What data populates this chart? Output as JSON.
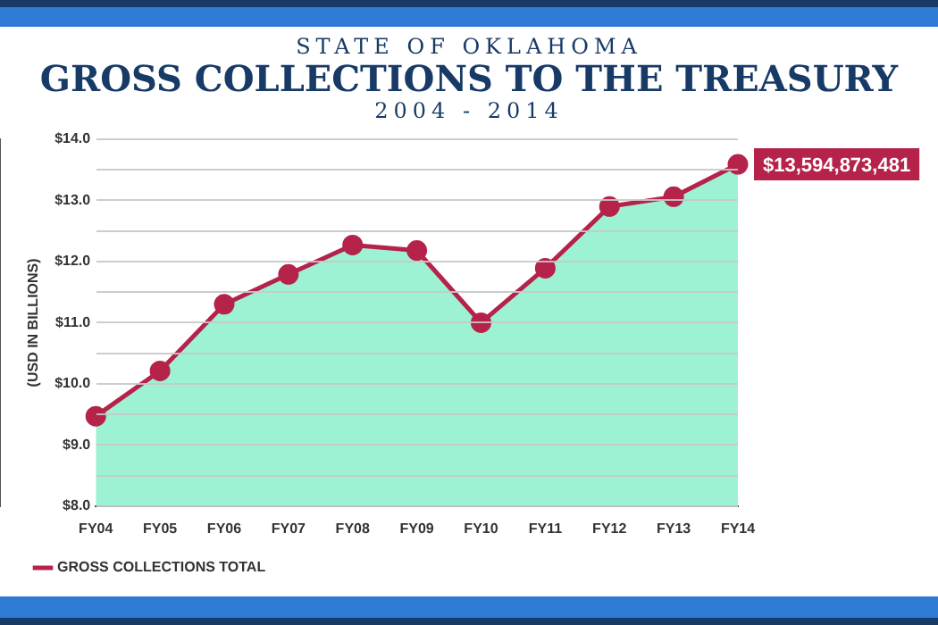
{
  "chart_data": {
    "type": "line",
    "title": "GROSS COLLECTIONS TO THE TREASURY",
    "subtitle": "2004 - 2014",
    "ylabel": "(USD IN BILLIONS)",
    "categories": [
      "FY04",
      "FY05",
      "FY06",
      "FY07",
      "FY08",
      "FY09",
      "FY10",
      "FY11",
      "FY12",
      "FY13",
      "FY14"
    ],
    "series": [
      {
        "type": "area",
        "color": "#9ef2d4",
        "values": [
          9.47,
          10.21,
          11.3,
          11.79,
          12.27,
          12.18,
          11.0,
          11.89,
          12.9,
          13.06,
          13.59
        ]
      },
      {
        "type": "line",
        "name": "GROSS COLLECTIONS TOTAL",
        "color": "#b5224a",
        "values": [
          9.47,
          10.21,
          11.3,
          11.79,
          12.27,
          12.18,
          11.0,
          11.89,
          12.9,
          13.06,
          13.59
        ]
      }
    ],
    "ylim": [
      8,
      14
    ],
    "yticks": [
      {
        "value": 8,
        "label": "$8.0"
      },
      {
        "value": 8.5,
        "label": null
      },
      {
        "value": 9,
        "label": "$9.0"
      },
      {
        "value": 9.5,
        "label": null
      },
      {
        "value": 10,
        "label": "$10.0"
      },
      {
        "value": 10.5,
        "label": null
      },
      {
        "value": 11,
        "label": "$11.0"
      },
      {
        "value": 11.5,
        "label": null
      },
      {
        "value": 12,
        "label": "$12.0"
      },
      {
        "value": 12.5,
        "label": null
      },
      {
        "value": 13,
        "label": "$13.0"
      },
      {
        "value": 13.5,
        "label": null
      },
      {
        "value": 14,
        "label": "$14.0"
      }
    ],
    "grid": "y",
    "legend": "bottom",
    "marker": "circle",
    "line_style": "solid",
    "annotations": [
      "STATE OF OKLAHOMA",
      {
        "text": "$13,594,873,481",
        "x": "FY14",
        "y": 13.59
      }
    ]
  }
}
